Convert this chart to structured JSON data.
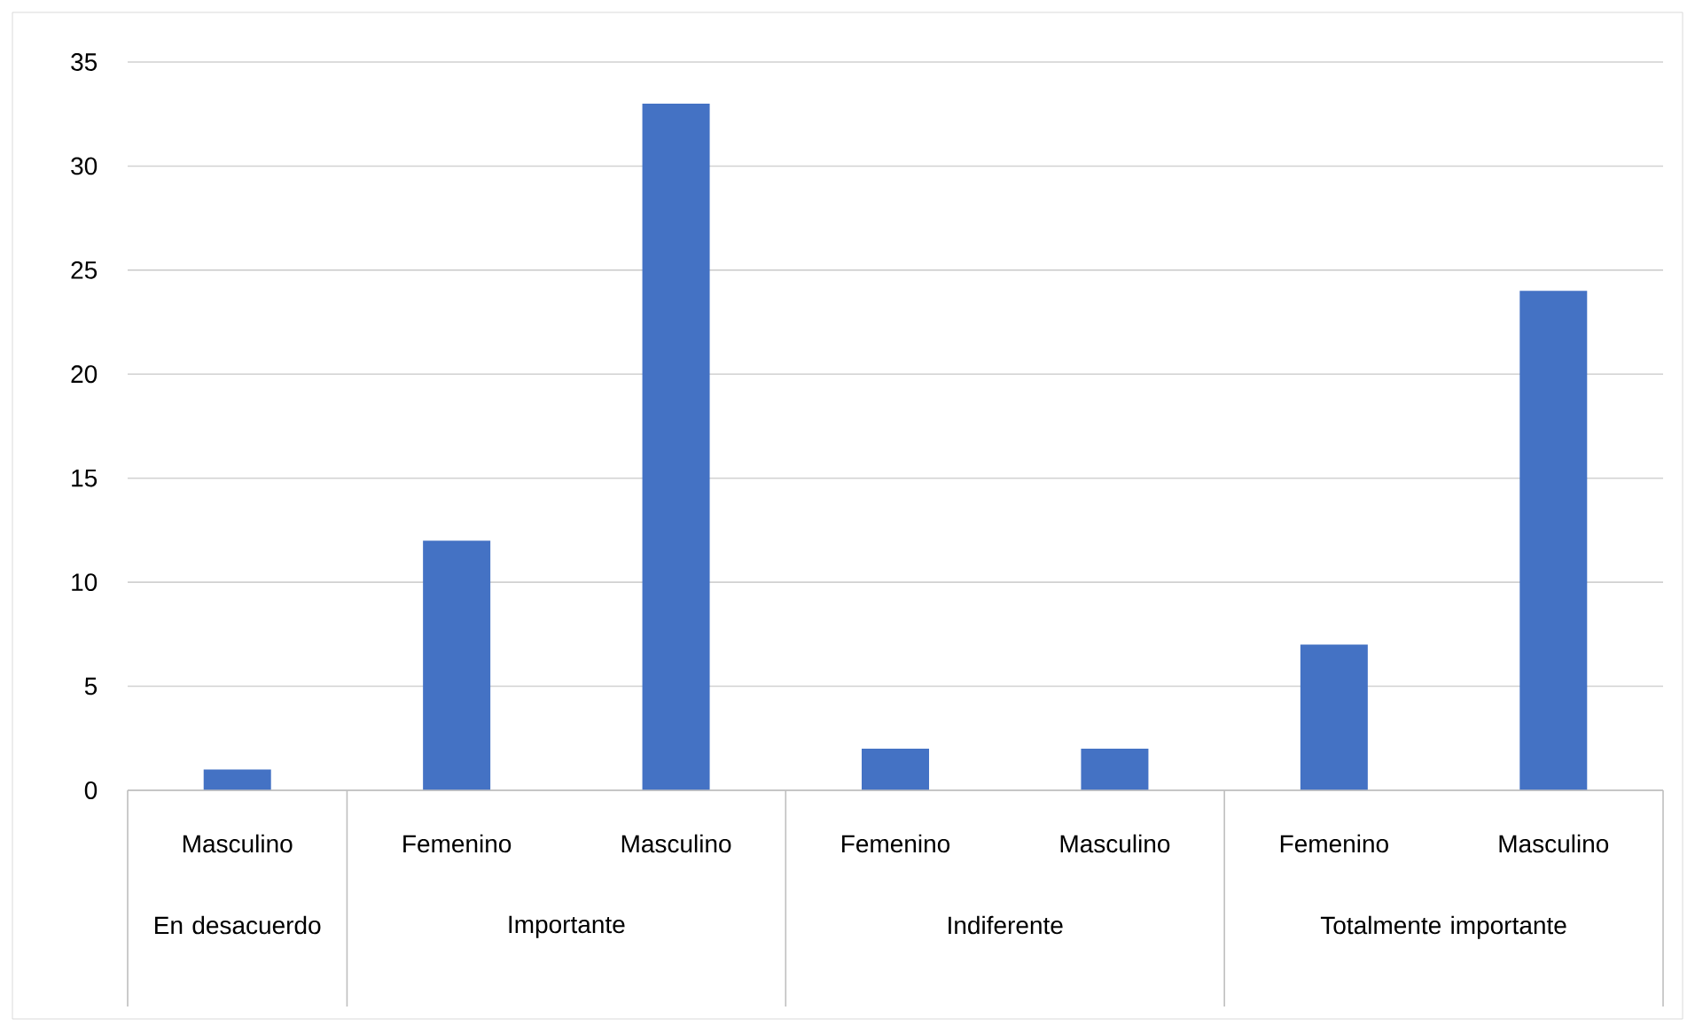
{
  "chart_data": {
    "type": "bar",
    "categories": [
      "Masculino",
      "Femenino",
      "Masculino",
      "Femenino",
      "Masculino",
      "Femenino",
      "Masculino"
    ],
    "values": [
      1,
      12,
      33,
      2,
      2,
      7,
      24
    ],
    "color": "#4472c4",
    "ylim": [
      0,
      35
    ],
    "yticks": [
      0,
      5,
      10,
      15,
      20,
      25,
      30,
      35
    ],
    "grid": "y",
    "annotations": [
      "En desacuerdo",
      "Importante",
      "Indiferente",
      "Totalmente importante"
    ]
  }
}
